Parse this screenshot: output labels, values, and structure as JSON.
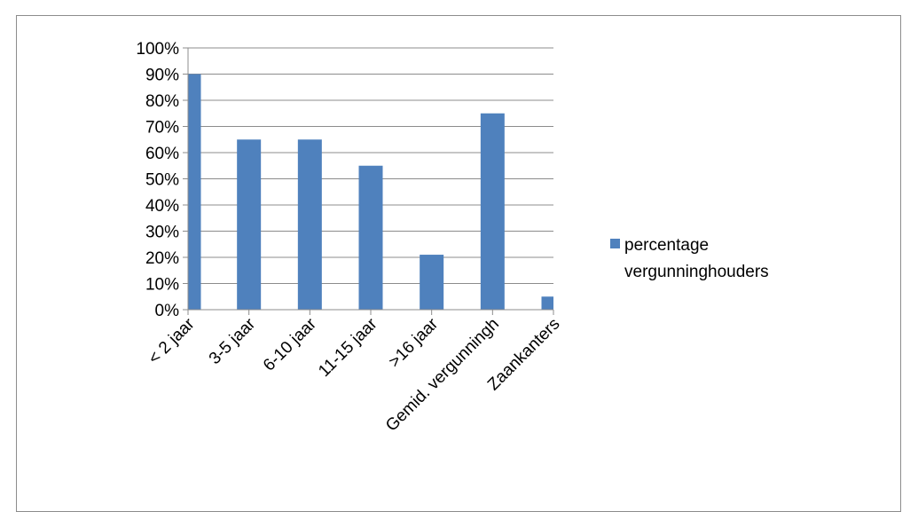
{
  "chart_data": {
    "type": "bar",
    "categories": [
      "< 2 jaar",
      "3-5 jaar",
      "6-10 jaar",
      "11-15 jaar",
      ">16 jaar",
      "Gemid. vergunningh",
      "Zaankanters"
    ],
    "series": [
      {
        "name": "percentage vergunninghouders",
        "values": [
          0.9,
          0.65,
          0.65,
          0.55,
          0.21,
          0.75,
          0.05
        ],
        "color": "#4f81bd"
      }
    ],
    "ylim": [
      0,
      1
    ],
    "yticks": [
      0,
      0.1,
      0.2,
      0.3,
      0.4,
      0.5,
      0.6,
      0.7,
      0.8,
      0.9,
      1.0
    ],
    "ytick_labels": [
      "0%",
      "10%",
      "20%",
      "30%",
      "40%",
      "50%",
      "60%",
      "70%",
      "80%",
      "90%",
      "100%"
    ],
    "grid": true,
    "legend": {
      "position": "right",
      "label_lines": [
        "percentage",
        "vergunninghouders"
      ]
    },
    "title": "",
    "xlabel": "",
    "ylabel": ""
  }
}
